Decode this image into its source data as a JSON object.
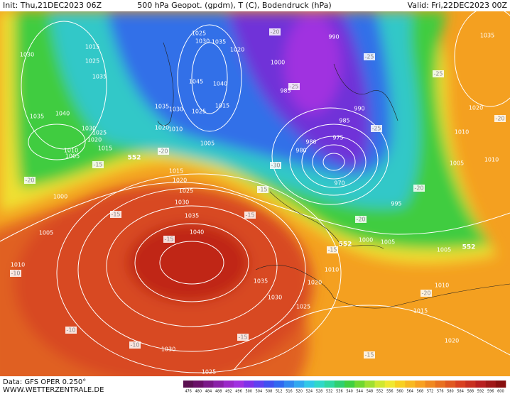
{
  "header": {
    "init": "Init: Thu,21DEC2023 06Z",
    "title": "500 hPa Geopot. (gpdm), T (C), Bodendruck (hPa)",
    "valid": "Valid: Fri,22DEC2023 00Z"
  },
  "footer": {
    "data": "Data: GFS OPER 0.250°",
    "site": "WWW.WETTERZENTRALE.DE"
  },
  "scale": {
    "values": [
      476,
      480,
      484,
      488,
      492,
      496,
      500,
      504,
      508,
      512,
      516,
      520,
      524,
      528,
      532,
      536,
      540,
      544,
      548,
      552,
      556,
      560,
      564,
      568,
      572,
      576,
      580,
      584,
      588,
      592,
      596,
      600
    ],
    "colors": [
      "#5a1050",
      "#6a1068",
      "#7a1888",
      "#8a20a8",
      "#9a28c8",
      "#a030e0",
      "#8030e8",
      "#6040f0",
      "#4050f0",
      "#3068f0",
      "#3088f0",
      "#30a8f0",
      "#30c8e8",
      "#30d8c8",
      "#30d8a0",
      "#30d070",
      "#40d040",
      "#70d830",
      "#a0e030",
      "#d0e830",
      "#f0e830",
      "#f8d020",
      "#f8b820",
      "#f8a020",
      "#f08820",
      "#e87020",
      "#e05820",
      "#d84020",
      "#c83020",
      "#b82020",
      "#a01818",
      "#881010"
    ]
  },
  "map": {
    "isobar_labels": [
      1030,
      1015,
      1025,
      1035,
      1040,
      1035,
      1030,
      1025,
      1020,
      1015,
      1010,
      1005,
      1000,
      1005,
      1010,
      1025,
      1030,
      1035,
      1020,
      1045,
      1040,
      1035,
      1030,
      1025,
      1015,
      1020,
      1010,
      1005,
      1000,
      990,
      985,
      990,
      985,
      975,
      980,
      980,
      970,
      995,
      1000,
      1005,
      1005,
      1015,
      1020,
      1025,
      1030,
      1035,
      1040,
      1035,
      1030,
      1020,
      1025,
      1010,
      1010,
      1015,
      1020,
      1030,
      1025,
      1035,
      1020,
      1010,
      1005,
      1010
    ],
    "temperature_labels": [
      -20,
      -15,
      -20,
      -15,
      -15,
      -10,
      -10,
      -10,
      -15,
      -15,
      -15,
      -20,
      -25,
      -30,
      -25,
      -25,
      -20,
      -20,
      -15,
      -25,
      -20,
      -20,
      -15
    ],
    "height_labels": [
      552,
      552,
      552
    ]
  }
}
